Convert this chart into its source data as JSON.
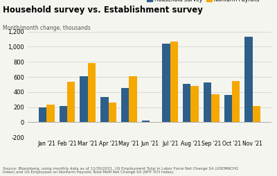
{
  "title": "Household survey vs. Establishment survey",
  "subtitle": "Month/month change, thousands",
  "categories": [
    "Jan '21",
    "Feb '21",
    "Mar '21",
    "Apr '21",
    "May '21",
    "Jun '21",
    "Jul '21",
    "Aug '21",
    "Sep '21",
    "Oct '21",
    "Nov '21"
  ],
  "household_survey": [
    200,
    210,
    610,
    330,
    450,
    20,
    1040,
    510,
    525,
    360,
    1130
  ],
  "nonfarm_payrolls": [
    230,
    535,
    785,
    265,
    610,
    0,
    1070,
    480,
    375,
    545,
    210
  ],
  "color_household": "#2E5F8A",
  "color_nonfarm": "#F5A800",
  "ylim": [
    -200,
    1200
  ],
  "yticks": [
    -200,
    0,
    200,
    400,
    600,
    800,
    1000,
    1200
  ],
  "legend_household": "Household Survey",
  "legend_nonfarm": "Nonfarm Payrolls",
  "source_text": "Source: Bloomberg, using monthly data as of 11/30/2021. US Employment Total in Labor Force Net Change SA (USEMNCHG\nIndex) and US Employees on Nonfarm Payrolls Total MoM Net Change SA (NFP TCH Index).",
  "background_color": "#F5F5F0"
}
